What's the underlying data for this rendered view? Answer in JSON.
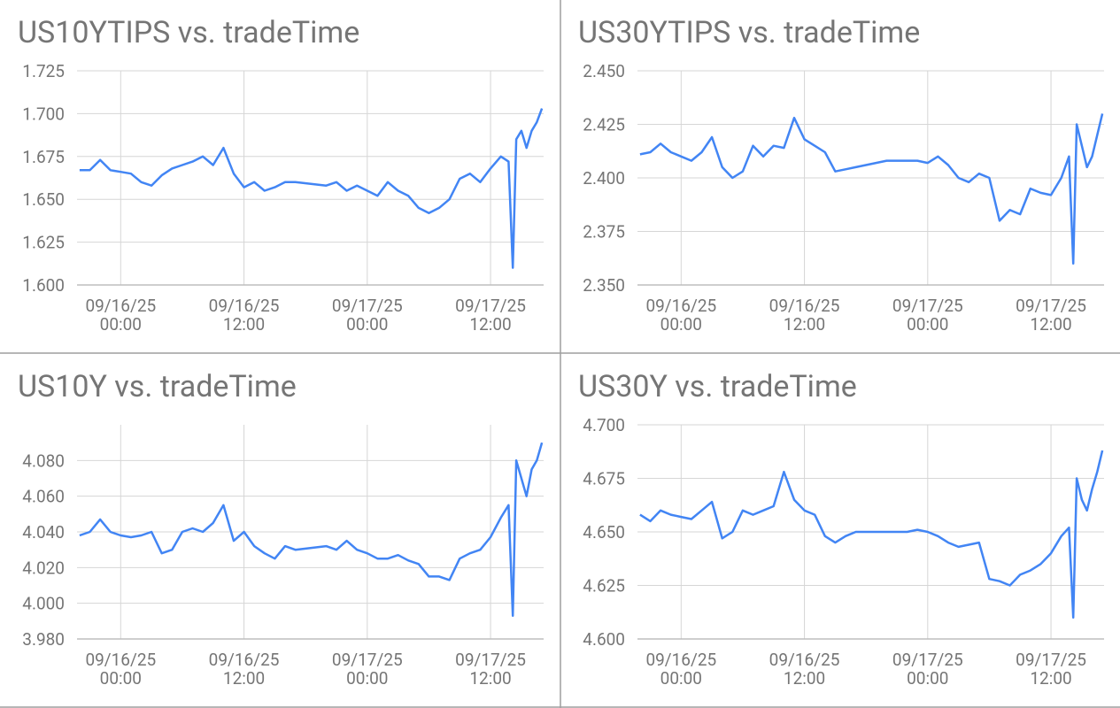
{
  "chart_data": [
    {
      "type": "line",
      "title": "US10YTIPS vs. tradeTime",
      "color": "#4285f4",
      "grid": true,
      "x": [
        "09/15/25 20:00",
        "09/15/25 21:00",
        "09/15/25 22:00",
        "09/15/25 23:00",
        "09/16/25 00:00",
        "09/16/25 01:00",
        "09/16/25 02:00",
        "09/16/25 03:00",
        "09/16/25 04:00",
        "09/16/25 05:00",
        "09/16/25 06:00",
        "09/16/25 07:00",
        "09/16/25 08:00",
        "09/16/25 09:00",
        "09/16/25 10:00",
        "09/16/25 11:00",
        "09/16/25 12:00",
        "09/16/25 13:00",
        "09/16/25 14:00",
        "09/16/25 15:00",
        "09/16/25 16:00",
        "09/16/25 17:00",
        "09/16/25 20:00",
        "09/16/25 21:00",
        "09/16/25 22:00",
        "09/16/25 23:00",
        "09/17/25 00:00",
        "09/17/25 01:00",
        "09/17/25 02:00",
        "09/17/25 03:00",
        "09/17/25 04:00",
        "09/17/25 05:00",
        "09/17/25 06:00",
        "09/17/25 07:00",
        "09/17/25 08:00",
        "09/17/25 09:00",
        "09/17/25 10:00",
        "09/17/25 11:00",
        "09/17/25 12:00",
        "09/17/25 13:00",
        "09/17/25 13:45",
        "09/17/25 14:10",
        "09/17/25 14:30",
        "09/17/25 15:00",
        "09/17/25 15:30",
        "09/17/25 16:00",
        "09/17/25 16:30",
        "09/17/25 17:00"
      ],
      "values": [
        1.667,
        1.667,
        1.673,
        1.667,
        1.666,
        1.665,
        1.66,
        1.658,
        1.664,
        1.668,
        1.67,
        1.672,
        1.675,
        1.67,
        1.68,
        1.665,
        1.657,
        1.66,
        1.655,
        1.657,
        1.66,
        1.66,
        1.658,
        1.66,
        1.655,
        1.658,
        1.655,
        1.652,
        1.66,
        1.655,
        1.652,
        1.645,
        1.642,
        1.645,
        1.65,
        1.662,
        1.665,
        1.66,
        1.668,
        1.675,
        1.672,
        1.61,
        1.685,
        1.69,
        1.68,
        1.69,
        1.695,
        1.703
      ],
      "xlim": [
        "09/15/25 19:45",
        "09/17/25 17:10"
      ],
      "xticks": [
        "09/16/25 00:00",
        "09/16/25 12:00",
        "09/17/25 00:00",
        "09/17/25 12:00"
      ],
      "ylim": [
        1.6,
        1.725
      ],
      "yticks": [
        {
          "value": 1.6,
          "label": "1.600"
        },
        {
          "value": 1.625,
          "label": "1.625"
        },
        {
          "value": 1.65,
          "label": "1.650"
        },
        1.675,
        {
          "value": 1.7,
          "label": "1.700"
        },
        1.725
      ]
    },
    {
      "type": "line",
      "title": "US30YTIPS vs. tradeTime",
      "color": "#4285f4",
      "grid": true,
      "x": [
        "09/15/25 20:00",
        "09/15/25 21:00",
        "09/15/25 22:00",
        "09/15/25 23:00",
        "09/16/25 00:00",
        "09/16/25 01:00",
        "09/16/25 02:00",
        "09/16/25 03:00",
        "09/16/25 04:00",
        "09/16/25 05:00",
        "09/16/25 06:00",
        "09/16/25 07:00",
        "09/16/25 08:00",
        "09/16/25 09:00",
        "09/16/25 10:00",
        "09/16/25 11:00",
        "09/16/25 12:00",
        "09/16/25 13:00",
        "09/16/25 14:00",
        "09/16/25 15:00",
        "09/16/25 16:00",
        "09/16/25 17:00",
        "09/16/25 20:00",
        "09/16/25 21:00",
        "09/16/25 22:00",
        "09/16/25 23:00",
        "09/17/25 00:00",
        "09/17/25 01:00",
        "09/17/25 02:00",
        "09/17/25 03:00",
        "09/17/25 04:00",
        "09/17/25 05:00",
        "09/17/25 06:00",
        "09/17/25 07:00",
        "09/17/25 08:00",
        "09/17/25 09:00",
        "09/17/25 10:00",
        "09/17/25 11:00",
        "09/17/25 12:00",
        "09/17/25 13:00",
        "09/17/25 13:45",
        "09/17/25 14:10",
        "09/17/25 14:30",
        "09/17/25 15:00",
        "09/17/25 15:30",
        "09/17/25 16:00",
        "09/17/25 16:30",
        "09/17/25 17:00"
      ],
      "values": [
        2.411,
        2.412,
        2.416,
        2.412,
        2.41,
        2.408,
        2.412,
        2.419,
        2.405,
        2.4,
        2.403,
        2.415,
        2.41,
        2.415,
        2.414,
        2.428,
        2.418,
        2.415,
        2.412,
        2.403,
        2.404,
        2.405,
        2.408,
        2.408,
        2.408,
        2.408,
        2.407,
        2.41,
        2.406,
        2.4,
        2.398,
        2.402,
        2.4,
        2.38,
        2.385,
        2.383,
        2.395,
        2.393,
        2.392,
        2.4,
        2.41,
        2.36,
        2.425,
        2.415,
        2.405,
        2.41,
        2.42,
        2.43
      ],
      "xlim": [
        "09/15/25 19:45",
        "09/17/25 17:10"
      ],
      "xticks": [
        "09/16/25 00:00",
        "09/16/25 12:00",
        "09/17/25 00:00",
        "09/17/25 12:00"
      ],
      "ylim": [
        2.35,
        2.45
      ],
      "yticks": [
        {
          "value": 2.35,
          "label": "2.350"
        },
        2.375,
        {
          "value": 2.4,
          "label": "2.400"
        },
        2.425,
        {
          "value": 2.45,
          "label": "2.450"
        }
      ]
    },
    {
      "type": "line",
      "title": "US10Y vs. tradeTime",
      "color": "#4285f4",
      "grid": true,
      "x": [
        "09/15/25 20:00",
        "09/15/25 21:00",
        "09/15/25 22:00",
        "09/15/25 23:00",
        "09/16/25 00:00",
        "09/16/25 01:00",
        "09/16/25 02:00",
        "09/16/25 03:00",
        "09/16/25 04:00",
        "09/16/25 05:00",
        "09/16/25 06:00",
        "09/16/25 07:00",
        "09/16/25 08:00",
        "09/16/25 09:00",
        "09/16/25 10:00",
        "09/16/25 11:00",
        "09/16/25 12:00",
        "09/16/25 13:00",
        "09/16/25 14:00",
        "09/16/25 15:00",
        "09/16/25 16:00",
        "09/16/25 17:00",
        "09/16/25 20:00",
        "09/16/25 21:00",
        "09/16/25 22:00",
        "09/16/25 23:00",
        "09/17/25 00:00",
        "09/17/25 01:00",
        "09/17/25 02:00",
        "09/17/25 03:00",
        "09/17/25 04:00",
        "09/17/25 05:00",
        "09/17/25 06:00",
        "09/17/25 07:00",
        "09/17/25 08:00",
        "09/17/25 09:00",
        "09/17/25 10:00",
        "09/17/25 11:00",
        "09/17/25 12:00",
        "09/17/25 13:00",
        "09/17/25 13:45",
        "09/17/25 14:10",
        "09/17/25 14:30",
        "09/17/25 15:00",
        "09/17/25 15:30",
        "09/17/25 16:00",
        "09/17/25 16:30",
        "09/17/25 17:00"
      ],
      "values": [
        4.038,
        4.04,
        4.047,
        4.04,
        4.038,
        4.037,
        4.038,
        4.04,
        4.028,
        4.03,
        4.04,
        4.042,
        4.04,
        4.045,
        4.055,
        4.035,
        4.04,
        4.032,
        4.028,
        4.025,
        4.032,
        4.03,
        4.032,
        4.03,
        4.035,
        4.03,
        4.028,
        4.025,
        4.025,
        4.027,
        4.024,
        4.022,
        4.015,
        4.015,
        4.013,
        4.025,
        4.028,
        4.03,
        4.037,
        4.048,
        4.055,
        3.993,
        4.08,
        4.07,
        4.06,
        4.075,
        4.08,
        4.09
      ],
      "xlim": [
        "09/15/25 19:45",
        "09/17/25 17:10"
      ],
      "xticks": [
        "09/16/25 00:00",
        "09/16/25 12:00",
        "09/17/25 00:00",
        "09/17/25 12:00"
      ],
      "ylim": [
        3.98,
        4.1
      ],
      "yticks": [
        {
          "value": 3.98,
          "label": "3.980"
        },
        {
          "value": 4.0,
          "label": "4.000"
        },
        {
          "value": 4.02,
          "label": "4.020"
        },
        {
          "value": 4.04,
          "label": "4.040"
        },
        {
          "value": 4.06,
          "label": "4.060"
        },
        {
          "value": 4.08,
          "label": "4.080"
        }
      ]
    },
    {
      "type": "line",
      "title": "US30Y vs. tradeTime",
      "color": "#4285f4",
      "grid": true,
      "x": [
        "09/15/25 20:00",
        "09/15/25 21:00",
        "09/15/25 22:00",
        "09/15/25 23:00",
        "09/16/25 00:00",
        "09/16/25 01:00",
        "09/16/25 02:00",
        "09/16/25 03:00",
        "09/16/25 04:00",
        "09/16/25 05:00",
        "09/16/25 06:00",
        "09/16/25 07:00",
        "09/16/25 08:00",
        "09/16/25 09:00",
        "09/16/25 10:00",
        "09/16/25 11:00",
        "09/16/25 12:00",
        "09/16/25 13:00",
        "09/16/25 14:00",
        "09/16/25 15:00",
        "09/16/25 16:00",
        "09/16/25 17:00",
        "09/16/25 20:00",
        "09/16/25 21:00",
        "09/16/25 22:00",
        "09/16/25 23:00",
        "09/17/25 00:00",
        "09/17/25 01:00",
        "09/17/25 02:00",
        "09/17/25 03:00",
        "09/17/25 04:00",
        "09/17/25 05:00",
        "09/17/25 06:00",
        "09/17/25 07:00",
        "09/17/25 08:00",
        "09/17/25 09:00",
        "09/17/25 10:00",
        "09/17/25 11:00",
        "09/17/25 12:00",
        "09/17/25 13:00",
        "09/17/25 13:45",
        "09/17/25 14:10",
        "09/17/25 14:30",
        "09/17/25 15:00",
        "09/17/25 15:30",
        "09/17/25 16:00",
        "09/17/25 16:30",
        "09/17/25 17:00"
      ],
      "values": [
        4.658,
        4.655,
        4.66,
        4.658,
        4.657,
        4.656,
        4.66,
        4.664,
        4.647,
        4.65,
        4.66,
        4.658,
        4.66,
        4.662,
        4.678,
        4.665,
        4.66,
        4.658,
        4.648,
        4.645,
        4.648,
        4.65,
        4.65,
        4.65,
        4.65,
        4.651,
        4.65,
        4.648,
        4.645,
        4.643,
        4.644,
        4.645,
        4.628,
        4.627,
        4.625,
        4.63,
        4.632,
        4.635,
        4.64,
        4.648,
        4.652,
        4.61,
        4.675,
        4.665,
        4.66,
        4.67,
        4.678,
        4.688
      ],
      "xlim": [
        "09/15/25 19:45",
        "09/17/25 17:10"
      ],
      "xticks": [
        "09/16/25 00:00",
        "09/16/25 12:00",
        "09/17/25 00:00",
        "09/17/25 12:00"
      ],
      "ylim": [
        4.6,
        4.7
      ],
      "yticks": [
        {
          "value": 4.6,
          "label": "4.600"
        },
        4.625,
        {
          "value": 4.65,
          "label": "4.650"
        },
        4.675,
        {
          "value": 4.7,
          "label": "4.700"
        }
      ]
    }
  ]
}
